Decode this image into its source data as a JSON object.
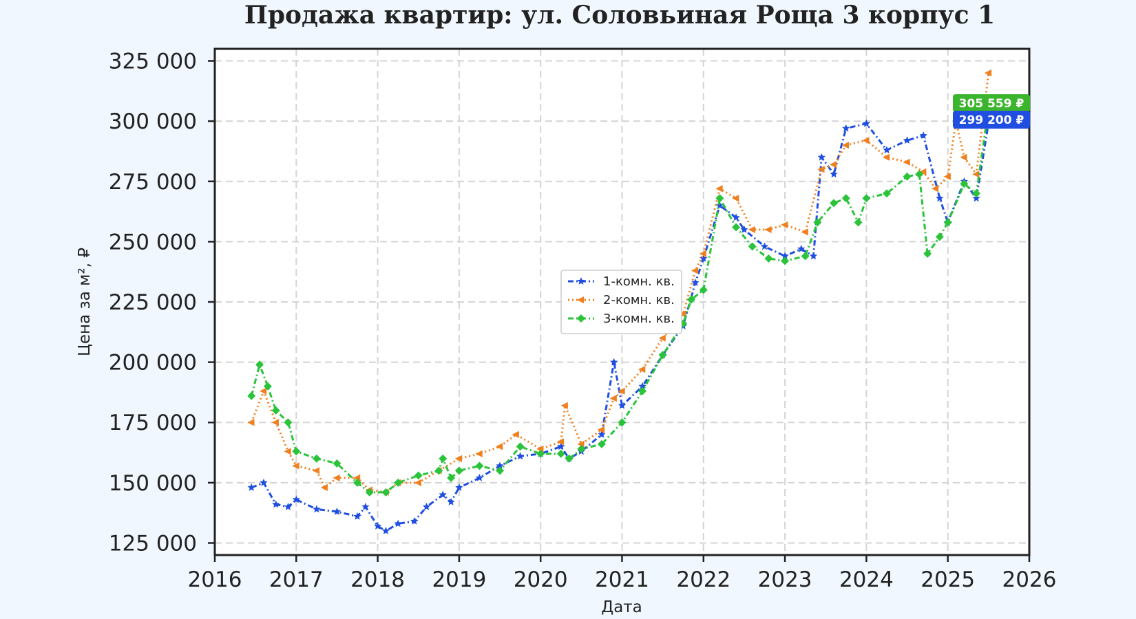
{
  "chart_data": {
    "type": "line",
    "title": "Продажа квартир: ул. Соловьиная Роща 3 корпус 1",
    "xlabel": "Дата",
    "ylabel": "Цена за м², ₽",
    "xlim": [
      2016,
      2026
    ],
    "ylim": [
      120000,
      330000
    ],
    "x_ticks": [
      "2016",
      "2017",
      "2018",
      "2019",
      "2020",
      "2021",
      "2022",
      "2023",
      "2024",
      "2025",
      "2026"
    ],
    "y_ticks": [
      {
        "value": 125000,
        "label": "125 000"
      },
      {
        "value": 150000,
        "label": "150 000"
      },
      {
        "value": 175000,
        "label": "175 000"
      },
      {
        "value": 200000,
        "label": "200 000"
      },
      {
        "value": 225000,
        "label": "225 000"
      },
      {
        "value": 250000,
        "label": "250 000"
      },
      {
        "value": 275000,
        "label": "275 000"
      },
      {
        "value": 300000,
        "label": "300 000"
      },
      {
        "value": 325000,
        "label": "325 000"
      }
    ],
    "grid": true,
    "legend_position": "center",
    "series": [
      {
        "name": "1-комн. кв.",
        "color": "#1f4ee0",
        "line_style": "dashdot",
        "marker": "star",
        "x": [
          2016.45,
          2016.6,
          2016.75,
          2016.9,
          2017.0,
          2017.25,
          2017.5,
          2017.75,
          2017.85,
          2018.0,
          2018.1,
          2018.25,
          2018.45,
          2018.6,
          2018.8,
          2018.9,
          2019.0,
          2019.25,
          2019.5,
          2019.75,
          2020.0,
          2020.25,
          2020.35,
          2020.5,
          2020.75,
          2020.9,
          2021.0,
          2021.25,
          2021.5,
          2021.75,
          2021.9,
          2022.0,
          2022.2,
          2022.4,
          2022.5,
          2022.75,
          2023.0,
          2023.2,
          2023.35,
          2023.45,
          2023.6,
          2023.75,
          2024.0,
          2024.25,
          2024.5,
          2024.7,
          2024.9,
          2025.0,
          2025.2,
          2025.35,
          2025.5
        ],
        "values": [
          148000,
          150000,
          141000,
          140000,
          143000,
          139000,
          138000,
          136000,
          140000,
          132000,
          130000,
          133000,
          134000,
          140000,
          145000,
          142000,
          148000,
          152000,
          157000,
          161000,
          162000,
          165000,
          160000,
          163000,
          170000,
          200000,
          182000,
          190000,
          203000,
          215000,
          233000,
          243000,
          265000,
          260000,
          255000,
          248000,
          244000,
          247000,
          244000,
          285000,
          278000,
          297000,
          299000,
          288000,
          292000,
          294000,
          268000,
          258000,
          275000,
          268000,
          299200
        ]
      },
      {
        "name": "2-комн. кв.",
        "color": "#f07f1e",
        "line_style": "dotted",
        "marker": "triangle",
        "x": [
          2016.45,
          2016.6,
          2016.75,
          2016.9,
          2017.0,
          2017.25,
          2017.35,
          2017.5,
          2017.75,
          2017.9,
          2018.1,
          2018.25,
          2018.5,
          2018.75,
          2019.0,
          2019.25,
          2019.5,
          2019.7,
          2020.0,
          2020.25,
          2020.3,
          2020.5,
          2020.75,
          2020.9,
          2021.0,
          2021.25,
          2021.5,
          2021.75,
          2021.9,
          2022.0,
          2022.2,
          2022.4,
          2022.6,
          2022.8,
          2023.0,
          2023.25,
          2023.45,
          2023.6,
          2023.75,
          2024.0,
          2024.25,
          2024.5,
          2024.7,
          2024.85,
          2025.0,
          2025.1,
          2025.2,
          2025.35,
          2025.5
        ],
        "values": [
          175000,
          188000,
          175000,
          163000,
          157000,
          155000,
          148000,
          152000,
          152000,
          147000,
          146000,
          150000,
          150000,
          155000,
          160000,
          162000,
          165000,
          170000,
          164000,
          167000,
          182000,
          166000,
          172000,
          185000,
          188000,
          197000,
          210000,
          220000,
          238000,
          245000,
          272000,
          268000,
          255000,
          255000,
          257000,
          254000,
          280000,
          282000,
          290000,
          292000,
          285000,
          283000,
          279000,
          272000,
          277000,
          300000,
          285000,
          278000,
          320000
        ]
      },
      {
        "name": "3-комн. кв.",
        "color": "#2ac33a",
        "line_style": "dashdot",
        "marker": "diamond",
        "x": [
          2016.45,
          2016.55,
          2016.65,
          2016.75,
          2016.9,
          2017.0,
          2017.25,
          2017.5,
          2017.75,
          2017.9,
          2018.1,
          2018.25,
          2018.5,
          2018.75,
          2018.8,
          2018.9,
          2019.0,
          2019.25,
          2019.5,
          2019.75,
          2020.0,
          2020.25,
          2020.35,
          2020.5,
          2020.75,
          2021.0,
          2021.25,
          2021.5,
          2021.75,
          2021.85,
          2022.0,
          2022.2,
          2022.4,
          2022.6,
          2022.8,
          2023.0,
          2023.25,
          2023.4,
          2023.6,
          2023.75,
          2023.9,
          2024.0,
          2024.25,
          2024.5,
          2024.65,
          2024.75,
          2024.9,
          2025.0,
          2025.2,
          2025.35,
          2025.5
        ],
        "values": [
          186000,
          199000,
          190000,
          180000,
          175000,
          163000,
          160000,
          158000,
          150000,
          146000,
          146000,
          150000,
          153000,
          155000,
          160000,
          152000,
          155000,
          157000,
          155000,
          165000,
          162000,
          162000,
          160000,
          164000,
          166000,
          175000,
          188000,
          203000,
          216000,
          226000,
          230000,
          268000,
          256000,
          248000,
          243000,
          242000,
          244000,
          258000,
          266000,
          268000,
          258000,
          268000,
          270000,
          277000,
          278000,
          245000,
          252000,
          258000,
          274000,
          270000,
          305559
        ]
      }
    ],
    "last_value_labels": [
      {
        "series": "3-комн. кв.",
        "value": 305559,
        "label": "305 559 ₽",
        "color": "#3cb52e"
      },
      {
        "series": "1-комн. кв.",
        "value": 299200,
        "label": "299 200 ₽",
        "color": "#1f4ee0"
      }
    ]
  }
}
